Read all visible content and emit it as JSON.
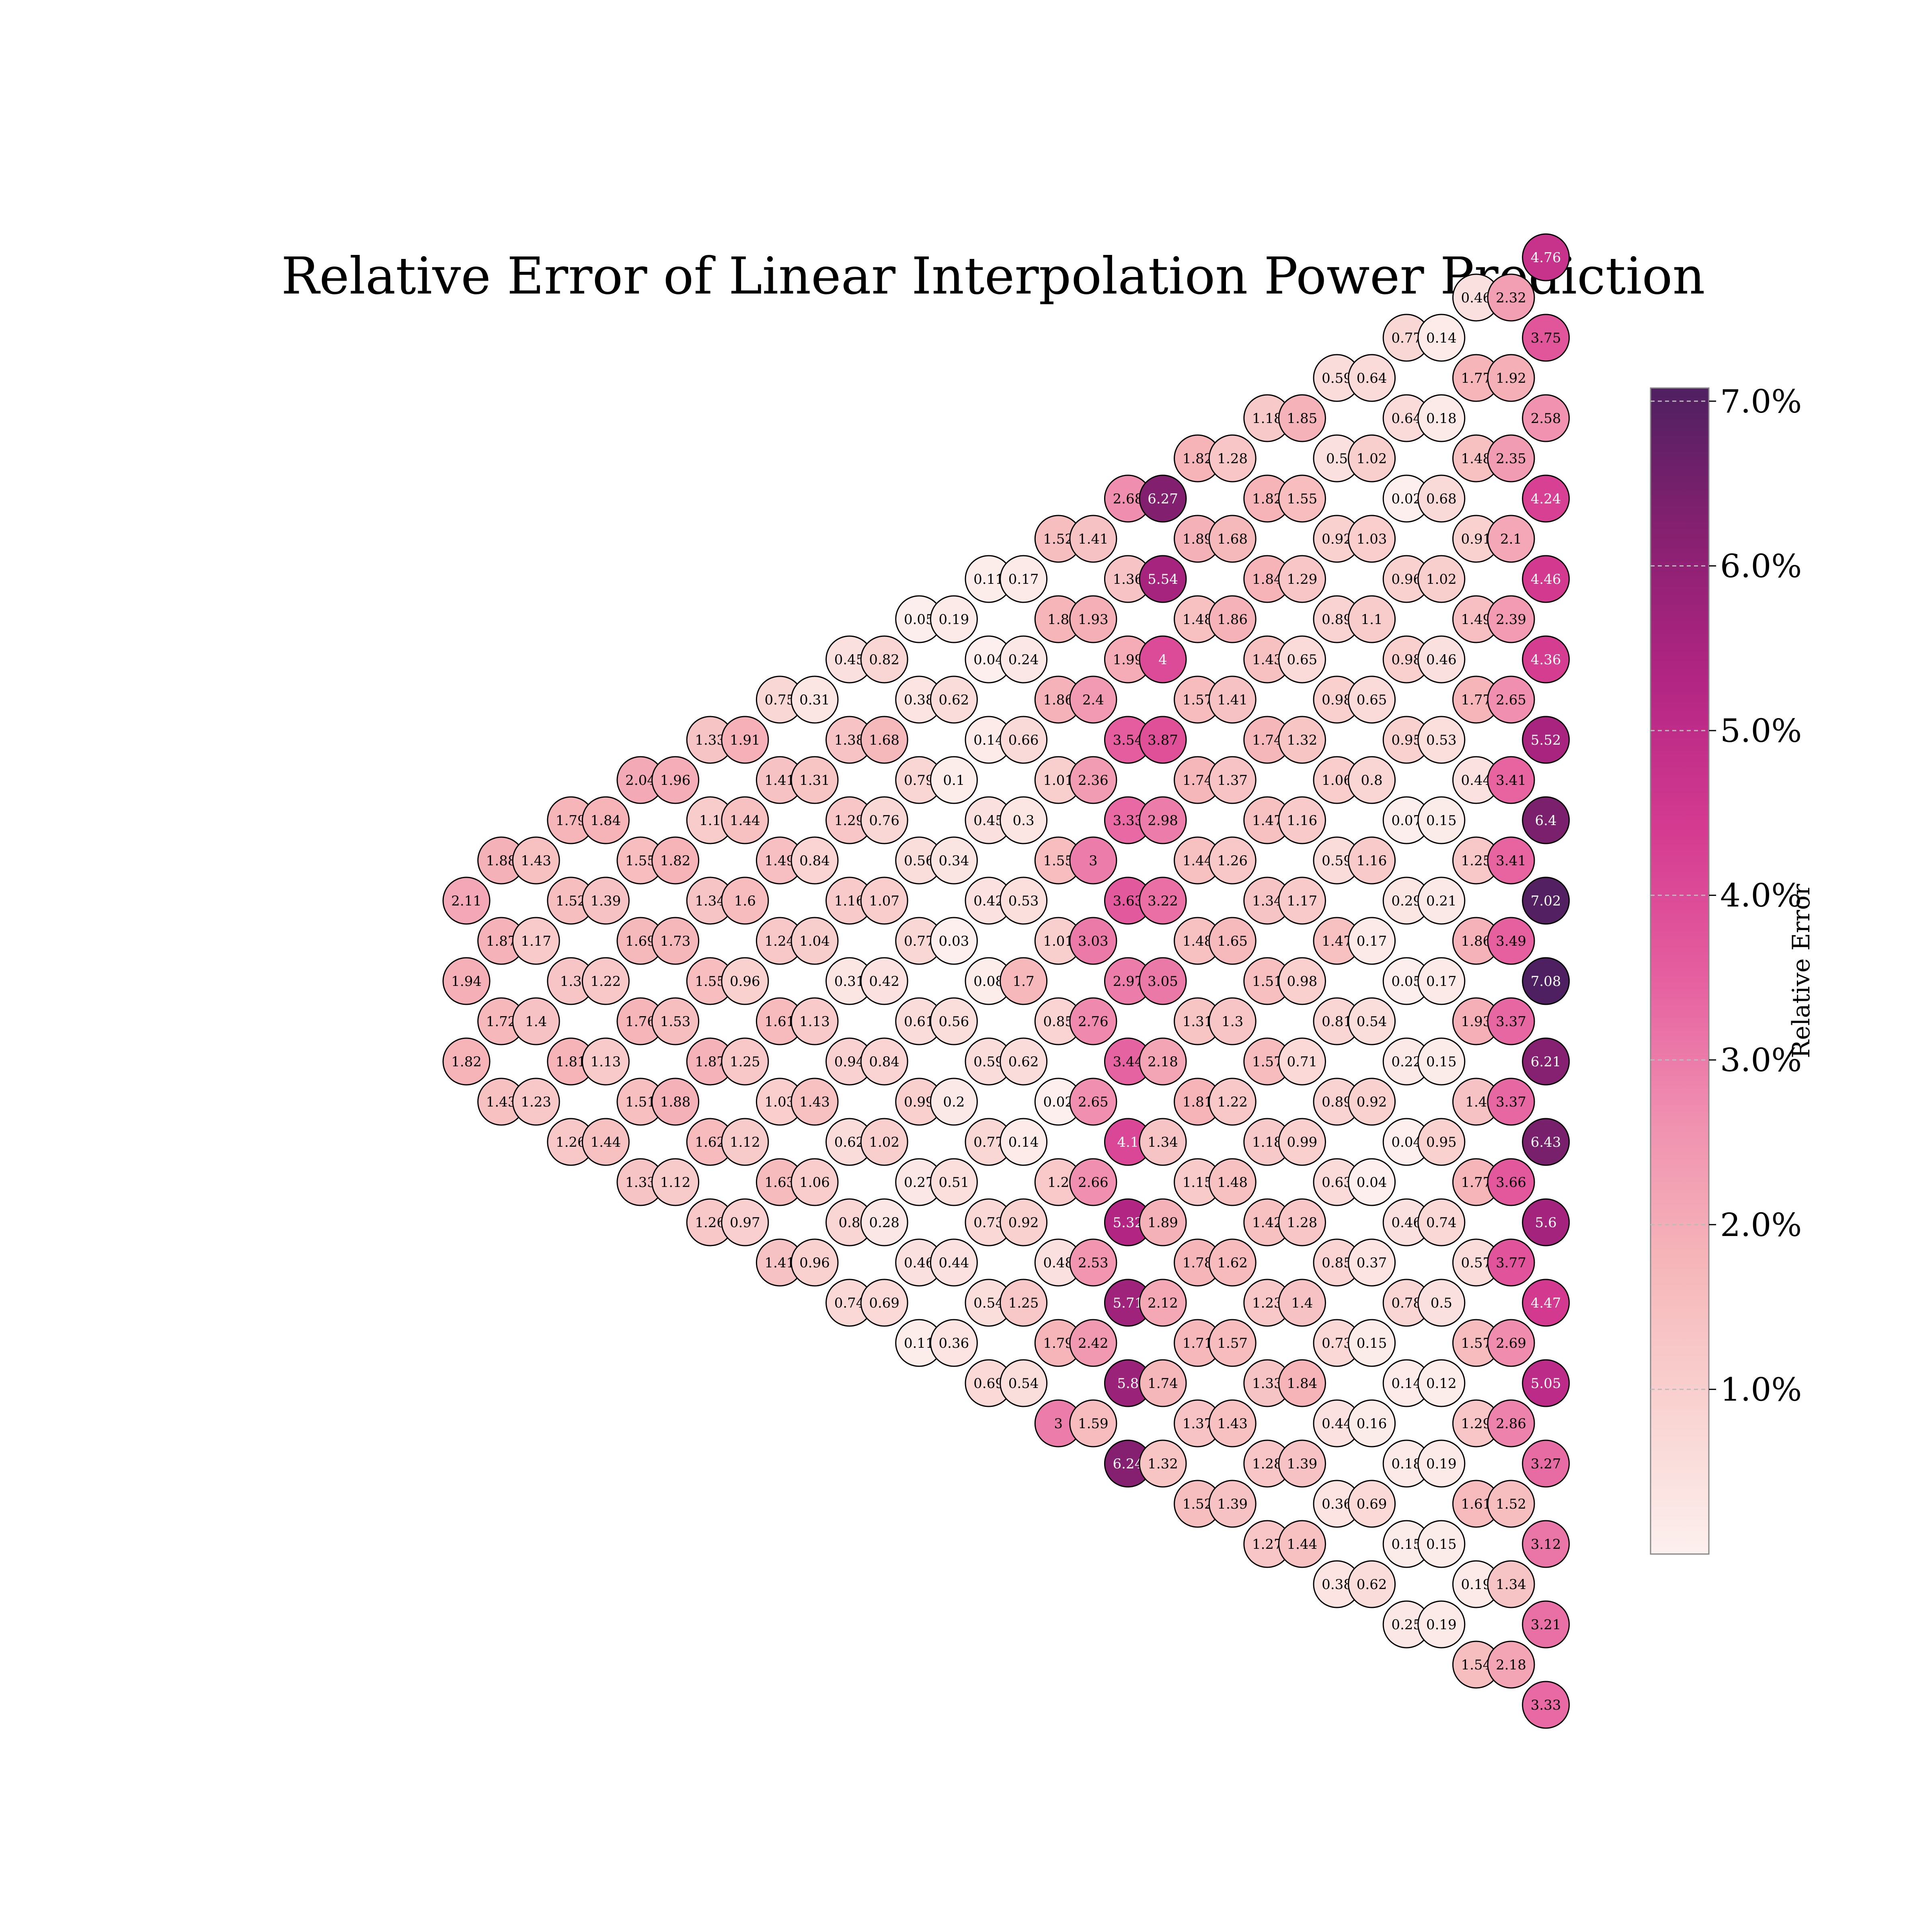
{
  "chart_data": {
    "type": "heatmap",
    "layout": "hexagonal-triangle",
    "title": "Relative Error of Linear Interpolation Power Prediction",
    "colorbar": {
      "label": "Relative Error",
      "min": 0.0,
      "max": 7.08,
      "ticks": [
        {
          "value": 1.0,
          "label": "1.0%"
        },
        {
          "value": 2.0,
          "label": "2.0%"
        },
        {
          "value": 3.0,
          "label": "3.0%"
        },
        {
          "value": 4.0,
          "label": "4.0%"
        },
        {
          "value": 5.0,
          "label": "5.0%"
        },
        {
          "value": 6.0,
          "label": "6.0%"
        },
        {
          "value": 7.0,
          "label": "7.0%"
        }
      ]
    },
    "colormap": [
      "#fcf0ee",
      "#f9d3d1",
      "#f6b6b9",
      "#f08fb0",
      "#e55d9f",
      "#d43a90",
      "#b22583",
      "#872070",
      "#4f2061"
    ],
    "columns": [
      {
        "values": [
          2.11,
          1.94,
          1.82
        ]
      },
      {
        "values": [
          1.88,
          1.87,
          1.72,
          1.43
        ]
      },
      {
        "values": [
          1.43,
          1.17,
          1.4,
          1.23
        ]
      },
      {
        "values": [
          1.79,
          1.52,
          1.3,
          1.81,
          1.26
        ]
      },
      {
        "values": [
          1.84,
          1.39,
          1.22,
          1.13,
          1.44
        ]
      },
      {
        "values": [
          2.04,
          1.55,
          1.69,
          1.76,
          1.51,
          1.33
        ]
      },
      {
        "values": [
          1.96,
          1.82,
          1.73,
          1.53,
          1.88,
          1.12
        ]
      },
      {
        "values": [
          1.33,
          1.1,
          1.34,
          1.55,
          1.87,
          1.62,
          1.26
        ]
      },
      {
        "values": [
          1.91,
          1.44,
          1.6,
          0.96,
          1.25,
          1.12,
          0.97
        ]
      },
      {
        "values": [
          0.75,
          1.41,
          1.49,
          1.24,
          1.61,
          1.03,
          1.63,
          1.41
        ]
      },
      {
        "values": [
          0.31,
          1.31,
          0.84,
          1.04,
          1.13,
          1.43,
          1.06,
          0.96
        ]
      },
      {
        "values": [
          0.45,
          1.38,
          1.29,
          1.16,
          0.31,
          0.94,
          0.62,
          0.8,
          0.74
        ]
      },
      {
        "values": [
          0.82,
          1.68,
          0.76,
          1.07,
          0.42,
          0.84,
          1.02,
          0.28,
          0.69
        ]
      },
      {
        "values": [
          0.05,
          0.38,
          0.79,
          0.56,
          0.77,
          0.61,
          0.99,
          0.27,
          0.46,
          0.11
        ]
      },
      {
        "values": [
          0.19,
          0.62,
          0.1,
          0.34,
          0.03,
          0.56,
          0.2,
          0.51,
          0.44,
          0.36
        ]
      },
      {
        "values": [
          0.11,
          0.04,
          0.14,
          0.45,
          0.42,
          0.08,
          0.59,
          0.77,
          0.73,
          0.54,
          0.69
        ]
      },
      {
        "values": [
          0.17,
          0.24,
          0.66,
          0.3,
          0.53,
          1.7,
          0.62,
          0.14,
          0.92,
          1.25,
          0.54
        ]
      },
      {
        "values": [
          1.52,
          1.8,
          1.86,
          1.01,
          1.55,
          1.01,
          0.85,
          0.02,
          1.2,
          0.48,
          1.79,
          3.0
        ]
      },
      {
        "values": [
          1.41,
          1.93,
          2.4,
          2.36,
          3.0,
          3.03,
          2.76,
          2.65,
          2.66,
          2.53,
          2.42,
          1.59
        ]
      },
      {
        "values": [
          2.68,
          1.36,
          1.99,
          3.54,
          3.33,
          3.63,
          2.97,
          3.44,
          4.1,
          5.32,
          5.71,
          5.8,
          6.24
        ]
      },
      {
        "values": [
          6.27,
          5.54,
          4.0,
          3.87,
          2.98,
          3.22,
          3.05,
          2.18,
          1.34,
          1.89,
          2.12,
          1.74,
          1.32
        ]
      },
      {
        "values": [
          1.82,
          1.89,
          1.48,
          1.57,
          1.74,
          1.44,
          1.48,
          1.31,
          1.81,
          1.15,
          1.78,
          1.71,
          1.37,
          1.52
        ]
      },
      {
        "values": [
          1.28,
          1.68,
          1.86,
          1.41,
          1.37,
          1.26,
          1.65,
          1.3,
          1.22,
          1.48,
          1.62,
          1.57,
          1.43,
          1.39
        ]
      },
      {
        "values": [
          1.18,
          1.82,
          1.84,
          1.43,
          1.74,
          1.47,
          1.34,
          1.51,
          1.57,
          1.18,
          1.42,
          1.23,
          1.33,
          1.28,
          1.27
        ]
      },
      {
        "values": [
          1.85,
          1.55,
          1.29,
          0.65,
          1.32,
          1.16,
          1.17,
          0.98,
          0.71,
          0.99,
          1.28,
          1.4,
          1.84,
          1.39,
          1.44
        ]
      },
      {
        "values": [
          0.59,
          0.5,
          0.92,
          0.89,
          0.98,
          1.06,
          0.59,
          1.47,
          0.81,
          0.89,
          0.63,
          0.85,
          0.73,
          0.44,
          0.36,
          0.38
        ]
      },
      {
        "values": [
          0.64,
          1.02,
          1.03,
          1.1,
          0.65,
          0.8,
          1.16,
          0.17,
          0.54,
          0.92,
          0.04,
          0.37,
          0.15,
          0.16,
          0.69,
          0.62
        ]
      },
      {
        "values": [
          0.77,
          0.64,
          0.02,
          0.96,
          0.98,
          0.95,
          0.07,
          0.29,
          0.05,
          0.22,
          0.04,
          0.46,
          0.78,
          0.14,
          0.18,
          0.15,
          0.25
        ]
      },
      {
        "values": [
          0.14,
          0.18,
          0.68,
          1.02,
          0.46,
          0.53,
          0.15,
          0.21,
          0.17,
          0.15,
          0.95,
          0.74,
          0.5,
          0.12,
          0.19,
          0.15,
          0.19
        ]
      },
      {
        "values": [
          0.46,
          1.77,
          1.48,
          0.91,
          1.49,
          1.77,
          0.44,
          1.25,
          1.86,
          1.93,
          1.4,
          1.77,
          0.57,
          1.57,
          1.29,
          1.61,
          0.19,
          1.54
        ]
      },
      {
        "values": [
          2.32,
          1.92,
          2.35,
          2.1,
          2.39,
          2.65,
          3.41,
          3.41,
          3.49,
          3.37,
          3.37,
          3.66,
          3.77,
          2.69,
          2.86,
          1.52,
          1.34,
          2.18
        ]
      },
      {
        "values": [
          4.76,
          3.75,
          2.58,
          4.24,
          4.46,
          4.36,
          5.52,
          6.4,
          7.02,
          7.08,
          6.21,
          6.43,
          5.6,
          4.47,
          5.05,
          3.27,
          3.12,
          3.21,
          3.33
        ]
      }
    ]
  }
}
